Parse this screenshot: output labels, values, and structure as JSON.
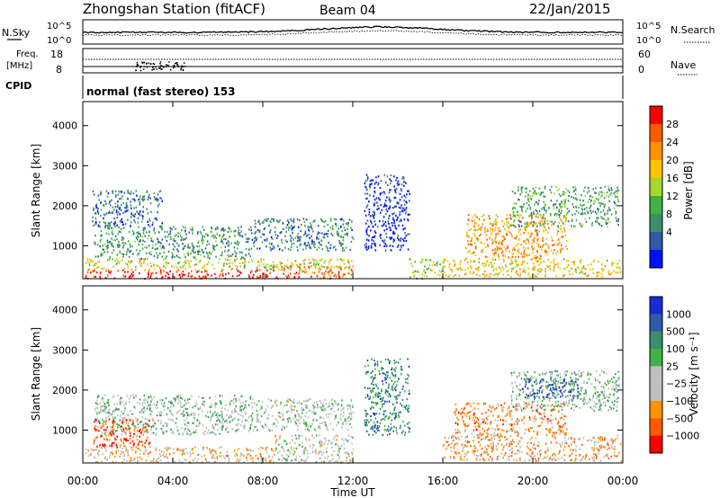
{
  "header": {
    "station": "Zhongshan Station (fitACF)",
    "beam": "Beam 04",
    "date": "22/Jan/2015"
  },
  "top_panels": {
    "nsky_label": "N.Sky",
    "nsearch_label": "N.Search",
    "noise_tick_high": "10^5",
    "noise_tick_low": "10^0",
    "freq_label_line1": "Freq.",
    "freq_label_line2": "[MHz]",
    "freq_ticks": [
      "18",
      "8"
    ],
    "nave_ticks": [
      "60",
      "0"
    ],
    "nave_label": "Nave",
    "cpid_label": "CPID",
    "cpid_value": "normal (fast stereo) 153"
  },
  "chart_data": [
    {
      "type": "heatmap",
      "name_key": "power",
      "xlabel": "Time UT",
      "ylabel": "Slant Range [km]",
      "xlim": [
        0,
        24
      ],
      "ylim": [
        180,
        4600
      ],
      "x_ticks": [
        "00:00",
        "04:00",
        "08:00",
        "12:00",
        "16:00",
        "20:00",
        "00:00"
      ],
      "y_ticks": [
        1000,
        2000,
        3000,
        4000
      ],
      "colorbar": {
        "label": "Power [dB]",
        "ticks": [
          "28",
          "24",
          "20",
          "16",
          "12",
          "8",
          "4"
        ],
        "colors": [
          "#ff0000",
          "#ff5a00",
          "#ff9400",
          "#ffc400",
          "#a4d92c",
          "#3fb246",
          "#3b8f6b",
          "#2e5aa8",
          "#0010ff"
        ]
      },
      "regions": [
        {
          "t0": 0.1,
          "t1": 8.5,
          "r0": 200,
          "r1": 420,
          "level": 0.95
        },
        {
          "t0": 8.5,
          "t1": 12.0,
          "r0": 200,
          "r1": 520,
          "level": 0.82
        },
        {
          "t0": 0.1,
          "t1": 12.0,
          "r0": 420,
          "r1": 700,
          "level": 0.55
        },
        {
          "t0": 0.5,
          "t1": 7.5,
          "r0": 700,
          "r1": 1500,
          "level": 0.3
        },
        {
          "t0": 7.5,
          "t1": 12.0,
          "r0": 900,
          "r1": 1700,
          "level": 0.25
        },
        {
          "t0": 0.4,
          "t1": 3.5,
          "r0": 1500,
          "r1": 2400,
          "level": 0.2
        },
        {
          "t0": 14.5,
          "t1": 16.0,
          "r0": 200,
          "r1": 700,
          "level": 0.45
        },
        {
          "t0": 16.0,
          "t1": 23.9,
          "r0": 250,
          "r1": 700,
          "level": 0.6
        },
        {
          "t0": 17.0,
          "t1": 21.5,
          "r0": 700,
          "r1": 1800,
          "level": 0.7
        },
        {
          "t0": 19.0,
          "t1": 23.8,
          "r0": 1500,
          "r1": 2500,
          "level": 0.35
        },
        {
          "t0": 12.5,
          "t1": 14.5,
          "r0": 900,
          "r1": 2800,
          "level": 0.1
        }
      ]
    },
    {
      "type": "heatmap",
      "name_key": "velocity",
      "xlabel": "Time UT",
      "ylabel": "Slant Range [km]",
      "xlim": [
        0,
        24
      ],
      "ylim": [
        180,
        4600
      ],
      "x_ticks": [
        "00:00",
        "04:00",
        "08:00",
        "12:00",
        "16:00",
        "20:00",
        "00:00"
      ],
      "y_ticks": [
        1000,
        2000,
        3000,
        4000
      ],
      "colorbar": {
        "label": "Velocity [m s⁻¹]",
        "ticks": [
          "1000",
          "500",
          "100",
          "25",
          "−25",
          "−100",
          "−500",
          "−1000"
        ],
        "colors": [
          "#1a2ad8",
          "#2e5aa8",
          "#3b8f6b",
          "#3fb246",
          "#bfbfbf",
          "#bfbfbf",
          "#ff9400",
          "#ff5a00",
          "#ff0000"
        ]
      },
      "regions": [
        {
          "t0": 0.1,
          "t1": 8.5,
          "r0": 200,
          "r1": 600,
          "level": 0.35
        },
        {
          "t0": 8.5,
          "t1": 12.0,
          "r0": 200,
          "r1": 900,
          "level": 0.45
        },
        {
          "t0": 0.5,
          "t1": 7.5,
          "r0": 900,
          "r1": 1900,
          "level": 0.55
        },
        {
          "t0": 7.5,
          "t1": 12.0,
          "r0": 1000,
          "r1": 1800,
          "level": 0.5
        },
        {
          "t0": 0.4,
          "t1": 3.0,
          "r0": 600,
          "r1": 1300,
          "level": 0.15
        },
        {
          "t0": 16.0,
          "t1": 23.9,
          "r0": 250,
          "r1": 900,
          "level": 0.3
        },
        {
          "t0": 16.5,
          "t1": 21.5,
          "r0": 900,
          "r1": 1700,
          "level": 0.25
        },
        {
          "t0": 19.0,
          "t1": 23.8,
          "r0": 1500,
          "r1": 2500,
          "level": 0.55
        },
        {
          "t0": 19.5,
          "t1": 22.0,
          "r0": 1800,
          "r1": 2300,
          "level": 0.85
        },
        {
          "t0": 12.5,
          "t1": 14.5,
          "r0": 900,
          "r1": 2800,
          "level": 0.75
        }
      ]
    }
  ]
}
